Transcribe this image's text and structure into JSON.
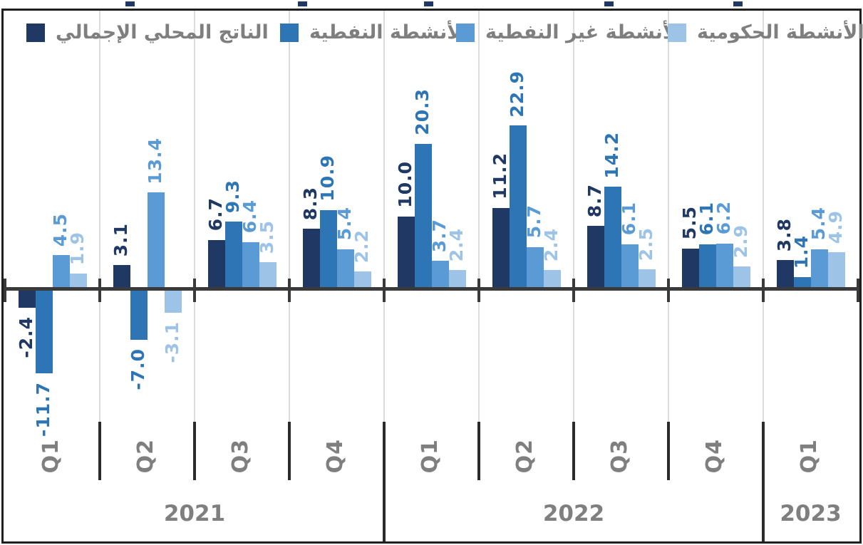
{
  "legend": {
    "items": [
      {
        "label": "الناتج المحلي الإجمالي",
        "color": "#1F3864"
      },
      {
        "label": "الأنشطة النفطية",
        "color": "#2E75B6"
      },
      {
        "label": "الأنشطة غير النفطية",
        "color": "#5B9BD5"
      },
      {
        "label": "الأنشطة الحكومية",
        "color": "#9DC3E6"
      }
    ]
  },
  "chart_data": {
    "type": "bar",
    "categories": [
      "Q1",
      "Q2",
      "Q3",
      "Q4",
      "Q1",
      "Q2",
      "Q3",
      "Q4",
      "Q1"
    ],
    "year_groups": [
      {
        "label": "2021",
        "from": 0,
        "to": 3
      },
      {
        "label": "2022",
        "from": 4,
        "to": 7
      },
      {
        "label": "2023",
        "from": 8,
        "to": 8
      }
    ],
    "series": [
      {
        "name": "الناتج المحلي الإجمالي",
        "color": "#1F3864",
        "values": [
          -2.4,
          3.1,
          6.7,
          8.3,
          10.0,
          11.2,
          8.7,
          5.5,
          3.8
        ]
      },
      {
        "name": "الأنشطة النفطية",
        "color": "#2E75B6",
        "values": [
          -11.7,
          -7.0,
          9.3,
          10.9,
          20.3,
          22.9,
          14.2,
          6.1,
          1.4
        ]
      },
      {
        "name": "الأنشطة غير النفطية",
        "color": "#5B9BD5",
        "values": [
          4.5,
          13.4,
          6.4,
          5.4,
          3.7,
          5.7,
          6.1,
          6.2,
          5.4
        ]
      },
      {
        "name": "الأنشطة الحكومية",
        "color": "#9DC3E6",
        "values": [
          1.9,
          -3.1,
          3.5,
          2.2,
          2.4,
          2.4,
          2.5,
          2.9,
          4.9
        ]
      }
    ],
    "value_label_decimals": 1,
    "ylim": [
      -13,
      24
    ],
    "grid": "vertical-category-separators-only",
    "legend_position": "top",
    "colors": {
      "axis": "#3A3A3A",
      "separator_light": "#DCDCDC",
      "separator_dark": "#2B2B2B",
      "category_text": "#7F7F7F",
      "border": "#1F1F1F"
    }
  }
}
